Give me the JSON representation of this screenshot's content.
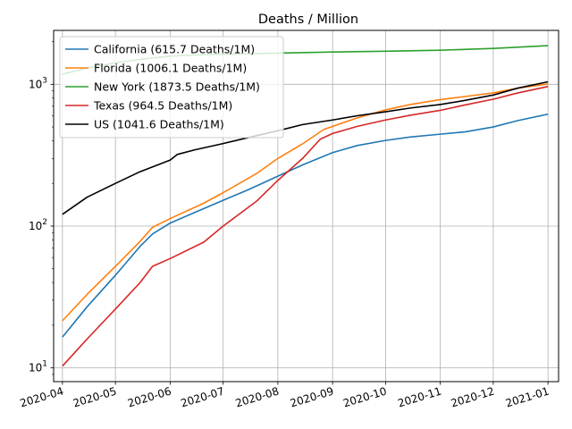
{
  "chart_data": {
    "type": "line",
    "title": "Deaths / Million",
    "xlabel": "",
    "ylabel": "",
    "yscale": "log",
    "ylim": [
      8,
      2400
    ],
    "xlim": [
      "2020-03-27",
      "2021-01-07"
    ],
    "grid": true,
    "legend_position": "top-left",
    "x_ticks": [
      "2020-04",
      "2020-05",
      "2020-06",
      "2020-07",
      "2020-08",
      "2020-09",
      "2020-10",
      "2020-11",
      "2020-12",
      "2021-01"
    ],
    "y_ticks": [
      {
        "value": 10,
        "base": "10",
        "exp": "1"
      },
      {
        "value": 100,
        "base": "10",
        "exp": "2"
      },
      {
        "value": 1000,
        "base": "10",
        "exp": "3"
      }
    ],
    "series": [
      {
        "name": "California (615.7 Deaths/1M)",
        "color": "#1f77b4",
        "points": [
          [
            "2020-04-01",
            16.5
          ],
          [
            "2020-04-15",
            27
          ],
          [
            "2020-05-01",
            45
          ],
          [
            "2020-05-15",
            72
          ],
          [
            "2020-05-22",
            88
          ],
          [
            "2020-06-01",
            105
          ],
          [
            "2020-06-15",
            125
          ],
          [
            "2020-07-01",
            152
          ],
          [
            "2020-07-15",
            180
          ],
          [
            "2020-08-01",
            225
          ],
          [
            "2020-08-15",
            270
          ],
          [
            "2020-09-01",
            330
          ],
          [
            "2020-09-15",
            370
          ],
          [
            "2020-10-01",
            402
          ],
          [
            "2020-10-15",
            425
          ],
          [
            "2020-11-01",
            445
          ],
          [
            "2020-11-15",
            462
          ],
          [
            "2020-12-01",
            500
          ],
          [
            "2020-12-15",
            555
          ],
          [
            "2021-01-01",
            615.7
          ]
        ]
      },
      {
        "name": "Florida (1006.1 Deaths/1M)",
        "color": "#ff7f0e",
        "points": [
          [
            "2020-04-01",
            21.5
          ],
          [
            "2020-04-15",
            33
          ],
          [
            "2020-05-01",
            52
          ],
          [
            "2020-05-15",
            78
          ],
          [
            "2020-05-22",
            98
          ],
          [
            "2020-06-01",
            113
          ],
          [
            "2020-06-20",
            145
          ],
          [
            "2020-07-01",
            172
          ],
          [
            "2020-07-20",
            235
          ],
          [
            "2020-08-01",
            300
          ],
          [
            "2020-08-15",
            380
          ],
          [
            "2020-08-27",
            480
          ],
          [
            "2020-09-15",
            580
          ],
          [
            "2020-10-01",
            660
          ],
          [
            "2020-10-15",
            720
          ],
          [
            "2020-11-01",
            780
          ],
          [
            "2020-11-15",
            820
          ],
          [
            "2020-12-01",
            870
          ],
          [
            "2020-12-15",
            940
          ],
          [
            "2021-01-01",
            1006.1
          ]
        ]
      },
      {
        "name": "New York (1873.5 Deaths/1M)",
        "color": "#2ca02c",
        "points": [
          [
            "2020-04-01",
            1180
          ],
          [
            "2020-04-15",
            1300
          ],
          [
            "2020-05-01",
            1420
          ],
          [
            "2020-05-15",
            1500
          ],
          [
            "2020-06-01",
            1580
          ],
          [
            "2020-06-15",
            1610
          ],
          [
            "2020-07-01",
            1630
          ],
          [
            "2020-08-01",
            1660
          ],
          [
            "2020-09-01",
            1690
          ],
          [
            "2020-10-01",
            1710
          ],
          [
            "2020-11-01",
            1740
          ],
          [
            "2020-12-01",
            1790
          ],
          [
            "2021-01-01",
            1873.5
          ]
        ]
      },
      {
        "name": "Texas (964.5 Deaths/1M)",
        "color": "#d62728",
        "points": [
          [
            "2020-04-01",
            10.3
          ],
          [
            "2020-04-15",
            16
          ],
          [
            "2020-05-01",
            26
          ],
          [
            "2020-05-15",
            40
          ],
          [
            "2020-05-22",
            52
          ],
          [
            "2020-06-01",
            59
          ],
          [
            "2020-06-20",
            77
          ],
          [
            "2020-07-01",
            100
          ],
          [
            "2020-07-20",
            150
          ],
          [
            "2020-08-01",
            210
          ],
          [
            "2020-08-15",
            300
          ],
          [
            "2020-08-25",
            410
          ],
          [
            "2020-09-01",
            450
          ],
          [
            "2020-09-15",
            505
          ],
          [
            "2020-10-01",
            560
          ],
          [
            "2020-10-15",
            605
          ],
          [
            "2020-11-01",
            655
          ],
          [
            "2020-11-15",
            715
          ],
          [
            "2020-12-01",
            785
          ],
          [
            "2020-12-15",
            870
          ],
          [
            "2021-01-01",
            964.5
          ]
        ]
      },
      {
        "name": "US (1041.6 Deaths/1M)",
        "color": "#000000",
        "points": [
          [
            "2020-04-01",
            121
          ],
          [
            "2020-04-15",
            160
          ],
          [
            "2020-05-01",
            200
          ],
          [
            "2020-05-15",
            242
          ],
          [
            "2020-06-01",
            292
          ],
          [
            "2020-06-05",
            320
          ],
          [
            "2020-06-15",
            345
          ],
          [
            "2020-07-01",
            382
          ],
          [
            "2020-07-15",
            420
          ],
          [
            "2020-08-01",
            470
          ],
          [
            "2020-08-15",
            520
          ],
          [
            "2020-09-01",
            560
          ],
          [
            "2020-09-15",
            600
          ],
          [
            "2020-10-01",
            640
          ],
          [
            "2020-10-15",
            680
          ],
          [
            "2020-11-01",
            720
          ],
          [
            "2020-11-15",
            770
          ],
          [
            "2020-12-01",
            840
          ],
          [
            "2020-12-15",
            940
          ],
          [
            "2021-01-01",
            1041.6
          ]
        ]
      }
    ]
  }
}
